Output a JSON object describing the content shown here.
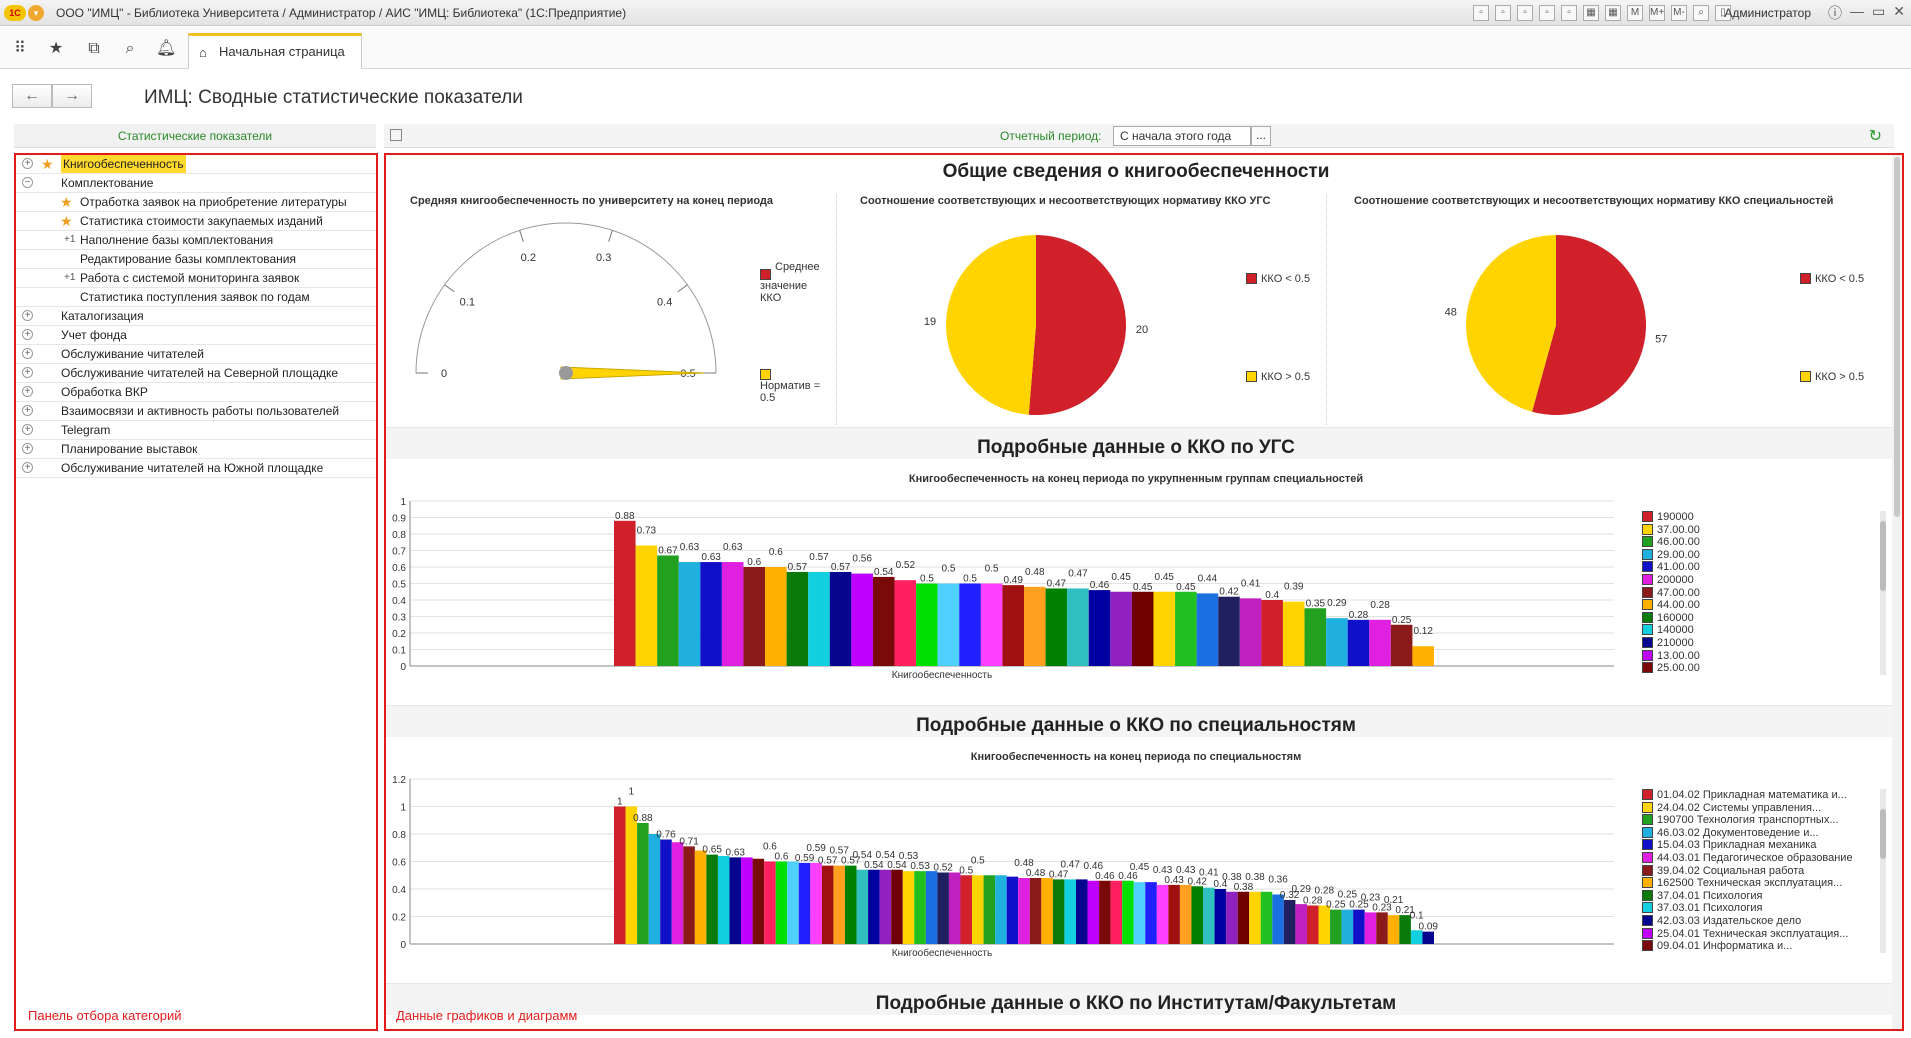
{
  "window": {
    "logo": "1С",
    "title": "ООО \"ИМЦ\" - Библиотека Университета / Администратор / АИС \"ИМЦ: Библиотека\" (1С:Предприятие)",
    "user": "Администратор",
    "tool_labels": [
      "M",
      "M+",
      "M-"
    ]
  },
  "home_tab": {
    "label": "Начальная страница"
  },
  "page": {
    "title": "ИМЦ: Сводные статистические показатели"
  },
  "left": {
    "header": "Статистические показатели",
    "tag": "Панель отбора категорий",
    "items": [
      {
        "label": "Книгообеспеченность",
        "level": 0,
        "icon": "star",
        "selected": true
      },
      {
        "label": "Комплектование",
        "level": 0,
        "icon": "expanded"
      },
      {
        "label": "Отработка заявок на приобретение литературы",
        "level": 1,
        "icon": "star"
      },
      {
        "label": "Статистика стоимости закупаемых изданий",
        "level": 1,
        "icon": "star"
      },
      {
        "label": "Наполнение базы комплектования",
        "level": 1,
        "icon": "plus"
      },
      {
        "label": "Редактирование базы комплектования",
        "level": 1,
        "icon": "none"
      },
      {
        "label": "Работа с системой мониторинга заявок",
        "level": 1,
        "icon": "plus"
      },
      {
        "label": "Статистика поступления заявок по годам",
        "level": 1,
        "icon": "none"
      },
      {
        "label": "Каталогизация",
        "level": 0,
        "icon": "collapsed"
      },
      {
        "label": "Учет фонда",
        "level": 0,
        "icon": "collapsed"
      },
      {
        "label": "Обслуживание читателей",
        "level": 0,
        "icon": "collapsed"
      },
      {
        "label": "Обслуживание читателей на Северной площадке",
        "level": 0,
        "icon": "collapsed"
      },
      {
        "label": "Обработка ВКР",
        "level": 0,
        "icon": "collapsed"
      },
      {
        "label": "Взаимосвязи и активность работы пользователей",
        "level": 0,
        "icon": "collapsed"
      },
      {
        "label": "Telegram",
        "level": 0,
        "icon": "collapsed"
      },
      {
        "label": "Планирование выставок",
        "level": 0,
        "icon": "collapsed"
      },
      {
        "label": "Обслуживание читателей на Южной площадке",
        "level": 0,
        "icon": "collapsed"
      }
    ]
  },
  "toolbar": {
    "period_label": "Отчетный период:",
    "period_value": "С начала этого года",
    "period_button": "..."
  },
  "right": {
    "tag": "Данные графиков и диаграмм",
    "section1_title": "Общие сведения о книгообеспеченности",
    "section2_title": "Подробные данные о ККО по УГС",
    "section3_title": "Подробные данные о ККО по специальностям",
    "section4_title": "Подробные данные о ККО по Институтам/Факультетам"
  },
  "colors": [
    "#d0202a",
    "#ffd400",
    "#22a020",
    "#20b0e0",
    "#1010c8",
    "#e020e0",
    "#8b1a1a",
    "#ffb000",
    "#0a7a0a",
    "#12d0e0",
    "#050590",
    "#c000ff",
    "#7a0a0a",
    "#ff2060",
    "#00e000",
    "#50d0ff",
    "#2020ff",
    "#ff40ff",
    "#a01010",
    "#ffa020",
    "#008000",
    "#30c0c0",
    "#0000a0",
    "#9020c0",
    "#700000",
    "#ffd400",
    "#20c020",
    "#1a70e0",
    "#202060",
    "#c020c0"
  ],
  "chart_data": [
    {
      "type": "gauge",
      "title": "Средняя книгообеспеченность по университету на конец периода",
      "value": 0.5,
      "ticks": [
        "0",
        "0.1",
        "0.2",
        "0.3",
        "0.4",
        "0.5"
      ],
      "range": [
        0,
        0.5
      ],
      "legend": [
        {
          "name": "Среднее значение ККО",
          "color": "#d0202a"
        },
        {
          "name": "Норматив = 0.5",
          "color": "#ffd400"
        }
      ]
    },
    {
      "type": "pie",
      "title": "Соотношение соответствующих и несоответствующих нормативу ККО УГС",
      "slices": [
        {
          "name": "ККО < 0.5",
          "value": 20,
          "color": "#d0202a"
        },
        {
          "name": "ККО > 0.5",
          "value": 19,
          "color": "#ffd400"
        }
      ]
    },
    {
      "type": "pie",
      "title": "Соотношение соответствующих и несоответствующих нормативу ККО специальностей",
      "slices": [
        {
          "name": "ККО < 0.5",
          "value": 57,
          "color": "#d0202a"
        },
        {
          "name": "ККО > 0.5",
          "value": 48,
          "color": "#ffd400"
        }
      ]
    },
    {
      "type": "bar",
      "title": "Книгообеспеченность на конец периода по укрупненным группам специальностей",
      "xlabel": "Книгообеспеченность",
      "ylim": [
        0,
        1
      ],
      "yticks": [
        "0",
        "0.1",
        "0.2",
        "0.3",
        "0.4",
        "0.5",
        "0.6",
        "0.7",
        "0.8",
        "0.9",
        "1"
      ],
      "values": [
        0.88,
        0.73,
        0.67,
        0.63,
        0.63,
        0.63,
        0.6,
        0.6,
        0.57,
        0.57,
        0.57,
        0.56,
        0.54,
        0.52,
        0.5,
        0.5,
        0.5,
        0.5,
        0.49,
        0.48,
        0.47,
        0.47,
        0.46,
        0.45,
        0.45,
        0.45,
        0.45,
        0.44,
        0.42,
        0.41,
        0.4,
        0.39,
        0.35,
        0.29,
        0.28,
        0.28,
        0.25,
        0.12
      ],
      "labels": [
        "0.88",
        "0.73",
        "0.67",
        "0.63",
        "0.63",
        "0.63",
        "0.6",
        "0.6",
        "0.57",
        "0.57",
        "0.57",
        "0.56",
        "0.54",
        "0.52",
        "0.5",
        "0.5",
        "0.5",
        "0.5",
        "0.49",
        "0.48",
        "0.47",
        "0.47",
        "0.46",
        "0.45",
        "0.45",
        "0.45",
        "0.45",
        "0.44",
        "0.42",
        "0.41",
        "0.4",
        "0.39",
        "0.35",
        "0.29",
        "0.28",
        "0.28",
        "0.25",
        "0.12"
      ],
      "legend": [
        "190000",
        "37.00.00",
        "46.00.00",
        "29.00.00",
        "41.00.00",
        "200000",
        "47.00.00",
        "44.00.00",
        "160000",
        "140000",
        "210000",
        "13.00.00",
        "25.00.00"
      ]
    },
    {
      "type": "bar",
      "title": "Книгообеспеченность на конец периода по специальностям",
      "xlabel": "Книгообеспеченность",
      "ylim": [
        0,
        1.2
      ],
      "yticks": [
        "0",
        "0.2",
        "0.4",
        "0.6",
        "0.8",
        "1",
        "1.2"
      ],
      "values": [
        1,
        1,
        0.88,
        0.8,
        0.76,
        0.74,
        0.71,
        0.68,
        0.65,
        0.64,
        0.63,
        0.63,
        0.62,
        0.6,
        0.6,
        0.6,
        0.59,
        0.59,
        0.57,
        0.57,
        0.57,
        0.54,
        0.54,
        0.54,
        0.54,
        0.53,
        0.53,
        0.53,
        0.52,
        0.52,
        0.5,
        0.5,
        0.5,
        0.5,
        0.49,
        0.48,
        0.48,
        0.48,
        0.47,
        0.47,
        0.47,
        0.46,
        0.46,
        0.46,
        0.46,
        0.45,
        0.45,
        0.43,
        0.43,
        0.43,
        0.42,
        0.41,
        0.4,
        0.38,
        0.38,
        0.38,
        0.38,
        0.36,
        0.32,
        0.29,
        0.28,
        0.28,
        0.25,
        0.25,
        0.25,
        0.23,
        0.23,
        0.21,
        0.21,
        0.1,
        0.09
      ],
      "labels": [
        "1",
        "1",
        "0.88",
        "",
        "0.76",
        "",
        "0.71",
        "",
        "0.65",
        "",
        "0.63",
        "",
        "",
        "0.6",
        "0.6",
        "",
        "0.59",
        "0.59",
        "0.57",
        "0.57",
        "0.57",
        "0.54",
        "0.54",
        "0.54",
        "0.54",
        "0.53",
        "0.53",
        "",
        "0.52",
        "",
        "0.5",
        "0.5",
        "",
        "",
        "",
        "0.48",
        "0.48",
        "",
        "0.47",
        "0.47",
        "",
        "0.46",
        "0.46",
        "",
        "0.46",
        "0.45",
        "",
        "0.43",
        "0.43",
        "0.43",
        "0.42",
        "0.41",
        "0.4",
        "0.38",
        "0.38",
        "0.38",
        "",
        "0.36",
        "0.32",
        "0.29",
        "0.28",
        "0.28",
        "0.25",
        "0.25",
        "0.25",
        "0.23",
        "0.23",
        "0.21",
        "0.21",
        "0.1",
        "0.09"
      ],
      "legend": [
        "01.04.02 Прикладная математика и...",
        "24.04.02 Системы управления...",
        "190700 Технология транспортных...",
        "46.03.02 Документоведение и...",
        "15.04.03 Прикладная механика",
        "44.03.01 Педагогическое образование",
        "39.04.02 Социальная работа",
        "162500 Техническая эксплуатация...",
        "37.04.01 Психология",
        "37.03.01 Психология",
        "42.03.03 Издательское дело",
        "25.04.01 Техническая эксплуатация...",
        "09.04.01 Информатика и..."
      ]
    }
  ]
}
